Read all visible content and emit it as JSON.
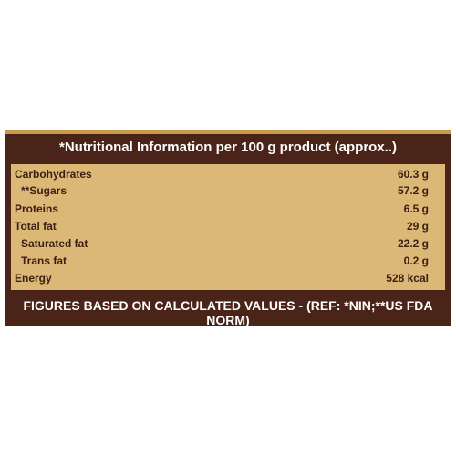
{
  "header": {
    "title": "*Nutritional Information per 100 g product (approx..)"
  },
  "table": {
    "rows": [
      [
        "Carbohydrates",
        "60.3 g"
      ],
      [
        "**Sugars",
        "57.2 g"
      ],
      [
        "Proteins",
        "6.5 g"
      ],
      [
        "Total fat",
        "29 g"
      ],
      [
        "Saturated fat",
        "22.2 g"
      ],
      [
        "Trans fat",
        "0.2 g"
      ],
      [
        "Energy",
        "528 kcal"
      ]
    ],
    "indented": [
      false,
      true,
      false,
      false,
      true,
      true,
      false
    ]
  },
  "footer": {
    "note": "FIGURES BASED ON CALCULATED VALUES - (REF: *NIN;**US FDA NORM)"
  }
}
